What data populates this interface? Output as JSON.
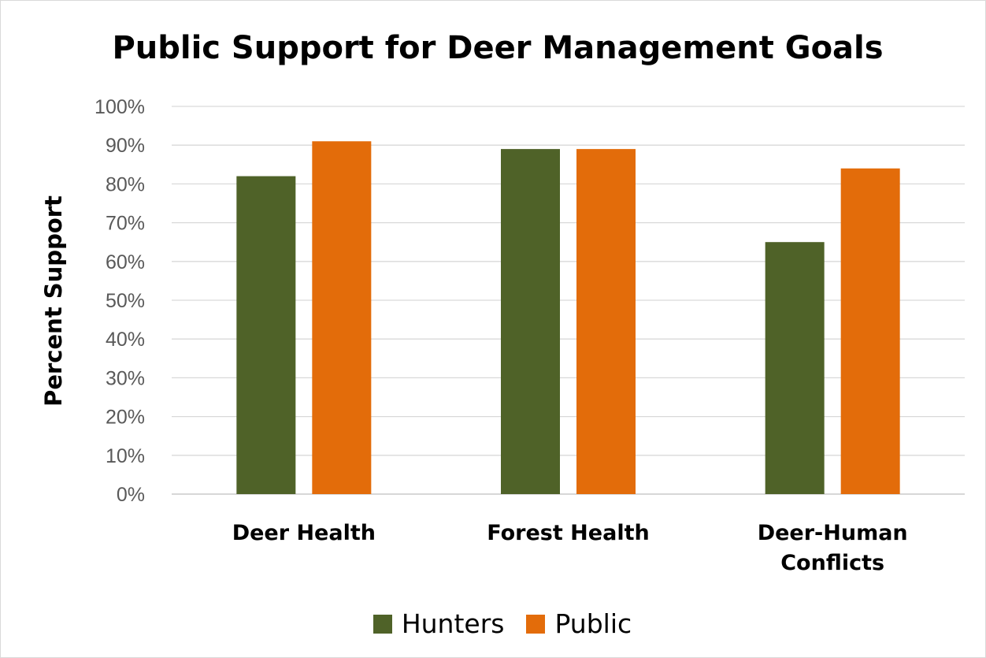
{
  "chart_data": {
    "type": "bar",
    "title": "Public Support for Deer Management Goals",
    "ylabel": "Percent Support",
    "xlabel": "",
    "categories": [
      "Deer Health",
      "Forest Health",
      "Deer-Human Conflicts"
    ],
    "category_lines": [
      [
        "Deer Health"
      ],
      [
        "Forest Health"
      ],
      [
        "Deer-Human",
        "Conflicts"
      ]
    ],
    "series": [
      {
        "name": "Hunters",
        "values": [
          82,
          89,
          65
        ],
        "color": "#4F6228"
      },
      {
        "name": "Public",
        "values": [
          91,
          89,
          84
        ],
        "color": "#E36C0A"
      }
    ],
    "ylim": [
      0,
      100
    ],
    "yticks": [
      "0%",
      "10%",
      "20%",
      "30%",
      "40%",
      "50%",
      "60%",
      "70%",
      "80%",
      "90%",
      "100%"
    ],
    "grid": true,
    "legend": "bottom"
  }
}
